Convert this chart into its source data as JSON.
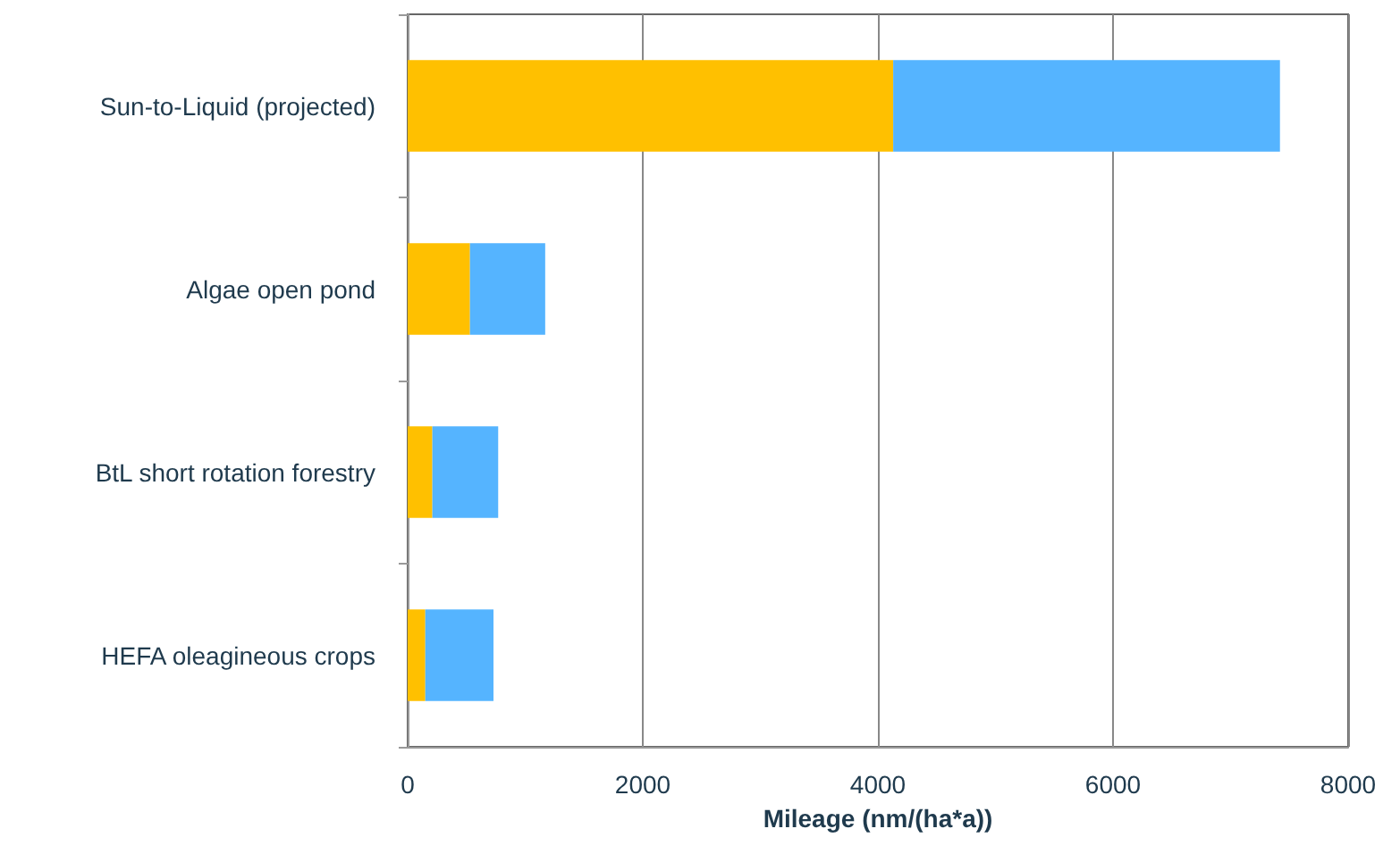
{
  "chart_data": {
    "type": "bar",
    "orientation": "horizontal",
    "stacked": true,
    "categories": [
      "Sun-to-Liquid (projected)",
      "Algae open pond",
      "BtL short rotation forestry",
      "HEFA oleagineous crops"
    ],
    "series": [
      {
        "color": "#ffc000",
        "values": [
          4130,
          530,
          210,
          150
        ]
      },
      {
        "color": "#55b4ff",
        "values": [
          3290,
          640,
          560,
          580
        ]
      }
    ],
    "xlabel": "Mileage (nm/(ha*a))",
    "xlim": [
      0,
      8000
    ],
    "xticks": [
      0,
      2000,
      4000,
      6000,
      8000
    ],
    "grid": "x"
  }
}
